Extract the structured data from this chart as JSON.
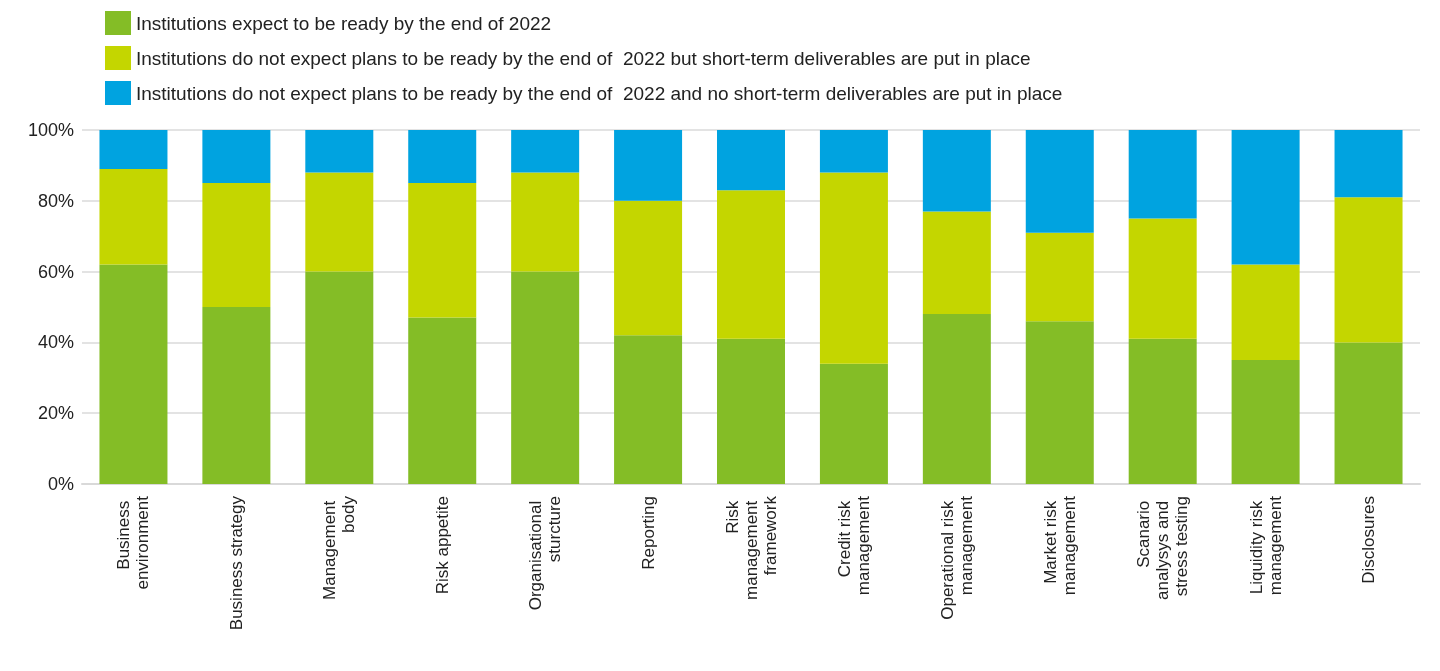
{
  "chart_data": {
    "type": "bar",
    "stacked": true,
    "categories": [
      "Business environment",
      "Business strategy",
      "Management body",
      "Risk appetite",
      "Organisational sturcture",
      "Reporting",
      "Risk management framework",
      "Credit risk management",
      "Operational risk management",
      "Market risk management",
      "Scanario analysys and stress testing",
      "Liquidity risk management",
      "Disclosures"
    ],
    "series": [
      {
        "name": "Institutions expect to be ready by the end of 2022",
        "color": "#84bd26",
        "values": [
          62,
          50,
          60,
          47,
          60,
          42,
          41,
          34,
          48,
          46,
          41,
          35,
          40
        ]
      },
      {
        "name": "Institutions do not expect plans to be ready by the end of  2022 but short-term deliverables are put in place",
        "color": "#c4d600",
        "values": [
          27,
          35,
          28,
          38,
          28,
          38,
          42,
          54,
          29,
          25,
          34,
          27,
          41
        ]
      },
      {
        "name": "Institutions do not expect plans to be ready by the end of  2022 and no short-term deliverables are put in place",
        "color": "#00a3e0",
        "values": [
          11,
          15,
          12,
          15,
          12,
          20,
          17,
          12,
          23,
          29,
          25,
          38,
          19
        ]
      }
    ],
    "ylim": [
      0,
      100
    ],
    "yticks": [
      {
        "value": 0,
        "label": "0%"
      },
      {
        "value": 20,
        "label": "20%"
      },
      {
        "value": 40,
        "label": "40%"
      },
      {
        "value": 60,
        "label": "60%"
      },
      {
        "value": 80,
        "label": "80%"
      },
      {
        "value": 100,
        "label": "100%"
      }
    ],
    "grid": "y",
    "legend": "top left"
  }
}
